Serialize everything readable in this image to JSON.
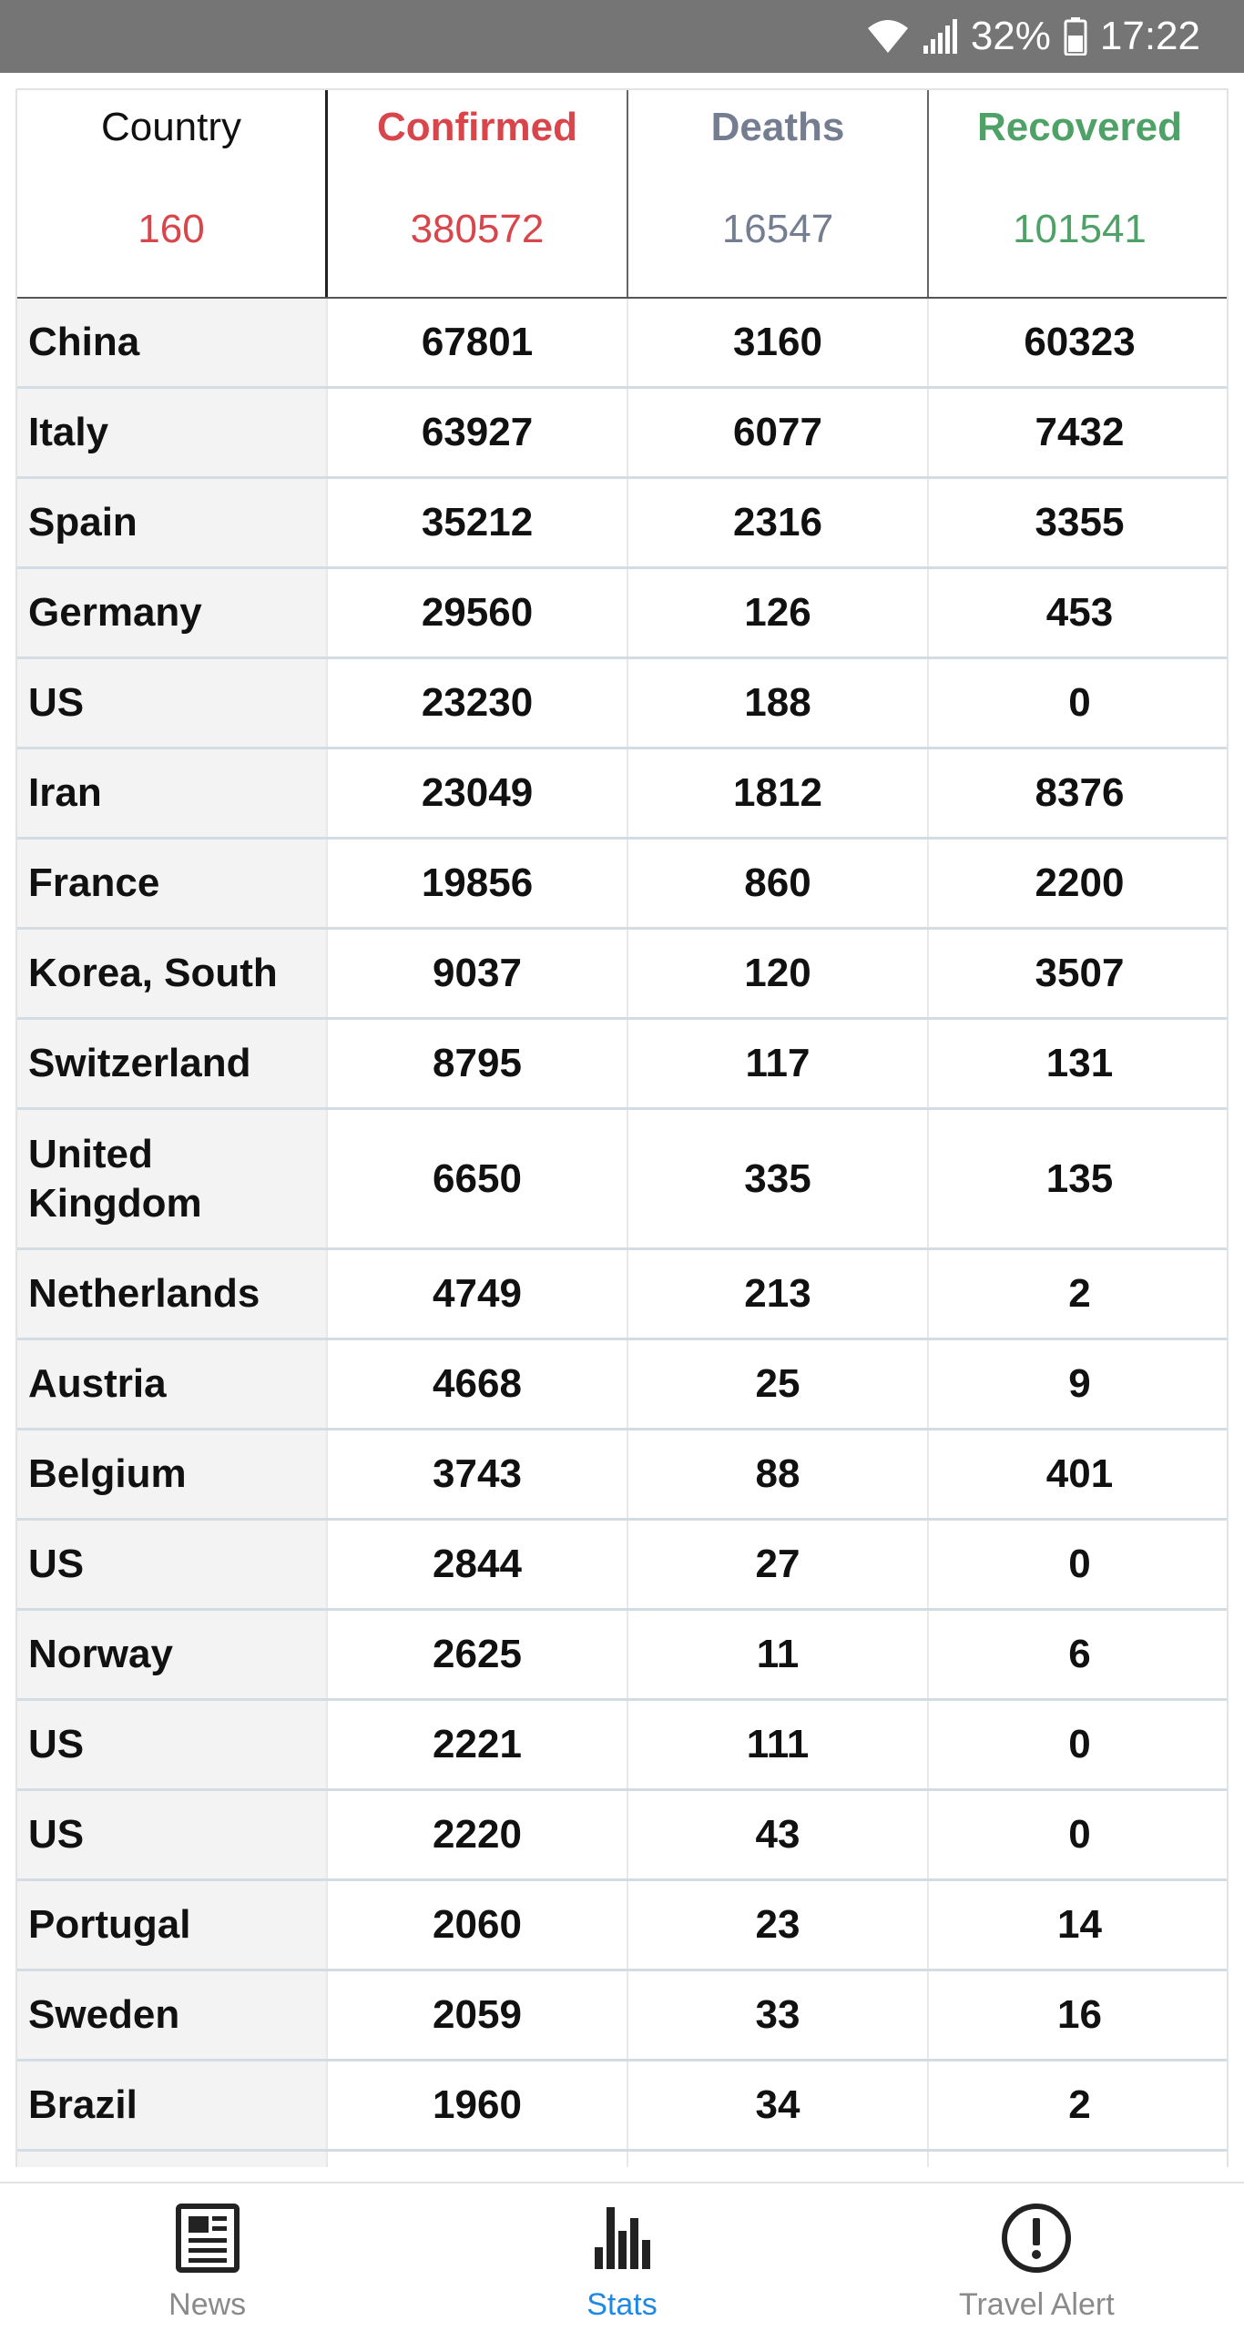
{
  "status_bar": {
    "battery": "32%",
    "time": "17:22"
  },
  "table": {
    "headers": [
      {
        "title": "Country",
        "total": "160"
      },
      {
        "title": "Confirmed",
        "total": "380572"
      },
      {
        "title": "Deaths",
        "total": "16547"
      },
      {
        "title": "Recovered",
        "total": "101541"
      }
    ],
    "rows": [
      {
        "country": "China",
        "confirmed": "67801",
        "deaths": "3160",
        "recovered": "60323"
      },
      {
        "country": "Italy",
        "confirmed": "63927",
        "deaths": "6077",
        "recovered": "7432"
      },
      {
        "country": "Spain",
        "confirmed": "35212",
        "deaths": "2316",
        "recovered": "3355"
      },
      {
        "country": "Germany",
        "confirmed": "29560",
        "deaths": "126",
        "recovered": "453"
      },
      {
        "country": "US",
        "confirmed": "23230",
        "deaths": "188",
        "recovered": "0"
      },
      {
        "country": "Iran",
        "confirmed": "23049",
        "deaths": "1812",
        "recovered": "8376"
      },
      {
        "country": "France",
        "confirmed": "19856",
        "deaths": "860",
        "recovered": "2200"
      },
      {
        "country": "Korea, South",
        "confirmed": "9037",
        "deaths": "120",
        "recovered": "3507"
      },
      {
        "country": "Switzerland",
        "confirmed": "8795",
        "deaths": "117",
        "recovered": "131"
      },
      {
        "country": "United Kingdom",
        "confirmed": "6650",
        "deaths": "335",
        "recovered": "135"
      },
      {
        "country": "Netherlands",
        "confirmed": "4749",
        "deaths": "213",
        "recovered": "2"
      },
      {
        "country": "Austria",
        "confirmed": "4668",
        "deaths": "25",
        "recovered": "9"
      },
      {
        "country": "Belgium",
        "confirmed": "3743",
        "deaths": "88",
        "recovered": "401"
      },
      {
        "country": "US",
        "confirmed": "2844",
        "deaths": "27",
        "recovered": "0"
      },
      {
        "country": "Norway",
        "confirmed": "2625",
        "deaths": "11",
        "recovered": "6"
      },
      {
        "country": "US",
        "confirmed": "2221",
        "deaths": "111",
        "recovered": "0"
      },
      {
        "country": "US",
        "confirmed": "2220",
        "deaths": "43",
        "recovered": "0"
      },
      {
        "country": "Portugal",
        "confirmed": "2060",
        "deaths": "23",
        "recovered": "14"
      },
      {
        "country": "Sweden",
        "confirmed": "2059",
        "deaths": "33",
        "recovered": "16"
      },
      {
        "country": "Brazil",
        "confirmed": "1960",
        "deaths": "34",
        "recovered": "2"
      },
      {
        "country": "",
        "confirmed": "",
        "deaths": "",
        "recovered": ""
      }
    ]
  },
  "bottom_nav": {
    "items": [
      {
        "label": "News",
        "icon": "newspaper-icon"
      },
      {
        "label": "Stats",
        "icon": "bar-chart-icon"
      },
      {
        "label": "Travel Alert",
        "icon": "alert-circle-icon"
      }
    ],
    "active_index": 1,
    "active_color": "#1e88e5",
    "inactive_color": "#8a8a8a"
  },
  "colors": {
    "confirmed": "#d8454b",
    "deaths": "#747e90",
    "recovered": "#4ea267",
    "status_bar": "#757575"
  }
}
